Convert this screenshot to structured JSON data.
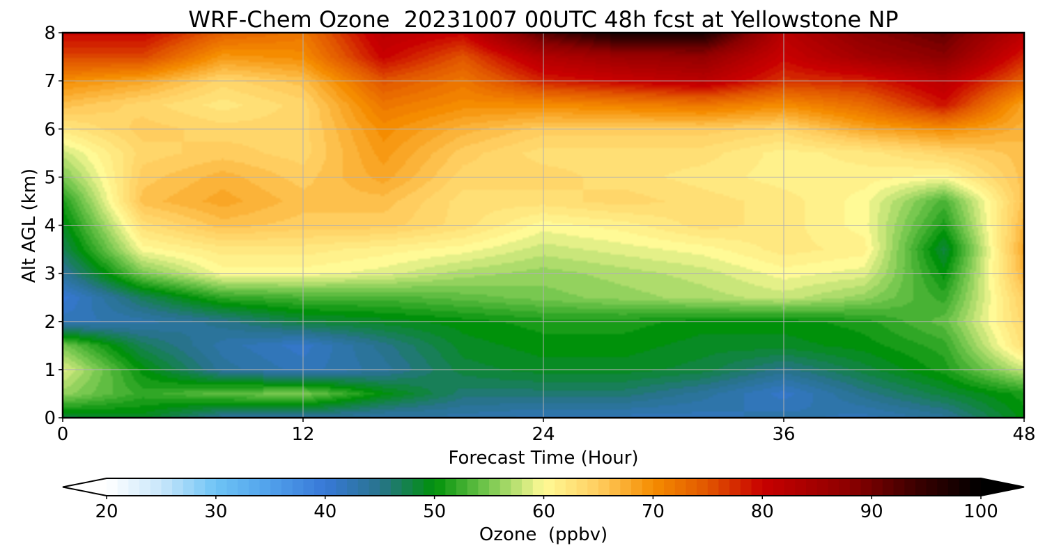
{
  "chart_data": {
    "type": "heatmap",
    "title": "WRF-Chem Ozone  20231007 00UTC 48h fcst at Yellowstone NP",
    "xlabel": "Forecast Time (Hour)",
    "ylabel": "Alt AGL (km)",
    "xlim": [
      0,
      48
    ],
    "ylim": [
      0,
      8
    ],
    "xticks": [
      0,
      12,
      24,
      36,
      48
    ],
    "yticks": [
      0,
      1,
      2,
      3,
      4,
      5,
      6,
      7,
      8
    ],
    "grid": true,
    "colorbar": {
      "label": "Ozone  (ppbv)",
      "min": 20,
      "max": 100,
      "ticks": [
        20,
        30,
        40,
        50,
        60,
        70,
        80,
        90,
        100
      ],
      "extend": "both",
      "orientation": "horizontal",
      "placement": "bottom"
    },
    "hours": [
      0,
      4,
      8,
      12,
      16,
      20,
      24,
      28,
      32,
      36,
      40,
      44,
      48
    ],
    "altitudes_km": [
      0,
      0.5,
      1,
      1.5,
      2,
      2.5,
      3,
      3.5,
      4,
      4.5,
      5,
      5.5,
      6,
      6.5,
      7,
      7.5,
      8
    ],
    "values_ppbv": [
      [
        48,
        49,
        44,
        44,
        43,
        43,
        42,
        42,
        42,
        43,
        42,
        44,
        50
      ],
      [
        56,
        52,
        54,
        55,
        50,
        46,
        46,
        46,
        44,
        41,
        45,
        48,
        51
      ],
      [
        59,
        50,
        44,
        42,
        44,
        48,
        49,
        49,
        48,
        45,
        48,
        51,
        58
      ],
      [
        55,
        47,
        43,
        41,
        45,
        49,
        50,
        50,
        49,
        49,
        50,
        52,
        63
      ],
      [
        42,
        43,
        45,
        48,
        49,
        50,
        51,
        51,
        50,
        50,
        51,
        54,
        64
      ],
      [
        40,
        47,
        52,
        53,
        53,
        54,
        55,
        56,
        57,
        58,
        56,
        52,
        65
      ],
      [
        44,
        55,
        60,
        60,
        59,
        57,
        56,
        57,
        58,
        60,
        59,
        50,
        67
      ],
      [
        47,
        60,
        62,
        62,
        61,
        60,
        58,
        59,
        60,
        62,
        61,
        48,
        68
      ],
      [
        49,
        63,
        66,
        65,
        65,
        63,
        60,
        61,
        63,
        62,
        60,
        51,
        67
      ],
      [
        51,
        66,
        68,
        66,
        66,
        63,
        63,
        64,
        63,
        62,
        60,
        53,
        66
      ],
      [
        55,
        65,
        67,
        65,
        68,
        64,
        64,
        63,
        62,
        61,
        61,
        60,
        66
      ],
      [
        58,
        64,
        65,
        64,
        69,
        65,
        63,
        63,
        63,
        61,
        62,
        64,
        66
      ],
      [
        62,
        65,
        64,
        64,
        70,
        67,
        65,
        65,
        65,
        64,
        68,
        70,
        67
      ],
      [
        66,
        64,
        62,
        64,
        72,
        70,
        70,
        71,
        72,
        70,
        73,
        79,
        68
      ],
      [
        70,
        68,
        64,
        66,
        75,
        72,
        78,
        80,
        82,
        77,
        78,
        82,
        74
      ],
      [
        76,
        76,
        69,
        70,
        80,
        75,
        83,
        86,
        87,
        80,
        85,
        88,
        78
      ],
      [
        80,
        80,
        74,
        72,
        82,
        80,
        92,
        98,
        97,
        82,
        88,
        91,
        82
      ]
    ]
  }
}
